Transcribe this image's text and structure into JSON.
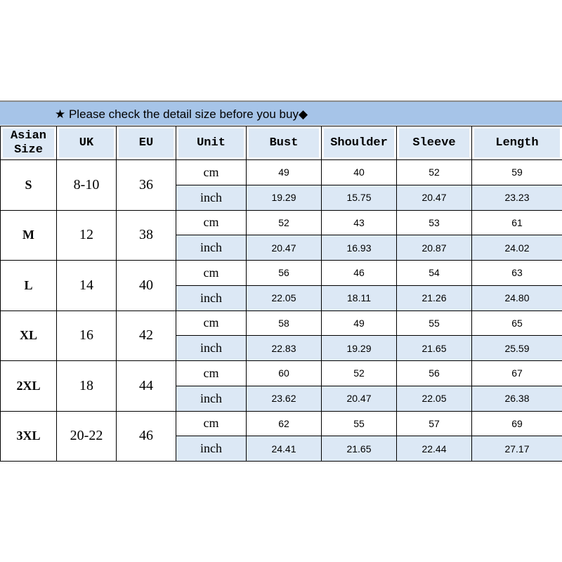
{
  "banner": {
    "text": "★ Please check the detail size before you buy◆"
  },
  "headers": [
    "Asian Size",
    "UK",
    "EU",
    "Unit",
    "Bust",
    "Shoulder",
    "Sleeve",
    "Length"
  ],
  "rows": [
    {
      "size": "S",
      "uk": "8-10",
      "eu": "36",
      "cm": [
        "49",
        "40",
        "52",
        "59"
      ],
      "inch": [
        "19.29",
        "15.75",
        "20.47",
        "23.23"
      ]
    },
    {
      "size": "M",
      "uk": "12",
      "eu": "38",
      "cm": [
        "52",
        "43",
        "53",
        "61"
      ],
      "inch": [
        "20.47",
        "16.93",
        "20.87",
        "24.02"
      ]
    },
    {
      "size": "L",
      "uk": "14",
      "eu": "40",
      "cm": [
        "56",
        "46",
        "54",
        "63"
      ],
      "inch": [
        "22.05",
        "18.11",
        "21.26",
        "24.80"
      ]
    },
    {
      "size": "XL",
      "uk": "16",
      "eu": "42",
      "cm": [
        "58",
        "49",
        "55",
        "65"
      ],
      "inch": [
        "22.83",
        "19.29",
        "21.65",
        "25.59"
      ]
    },
    {
      "size": "2XL",
      "uk": "18",
      "eu": "44",
      "cm": [
        "60",
        "52",
        "56",
        "67"
      ],
      "inch": [
        "23.62",
        "20.47",
        "22.05",
        "26.38"
      ]
    },
    {
      "size": "3XL",
      "uk": "20-22",
      "eu": "46",
      "cm": [
        "62",
        "55",
        "57",
        "69"
      ],
      "inch": [
        "24.41",
        "21.65",
        "22.44",
        "27.17"
      ]
    }
  ],
  "units": {
    "cm": "cm",
    "inch": "inch"
  },
  "colors": {
    "banner": "#a6c4e8",
    "header_cell": "#dce8f5",
    "inch_row": "#dce8f5"
  }
}
